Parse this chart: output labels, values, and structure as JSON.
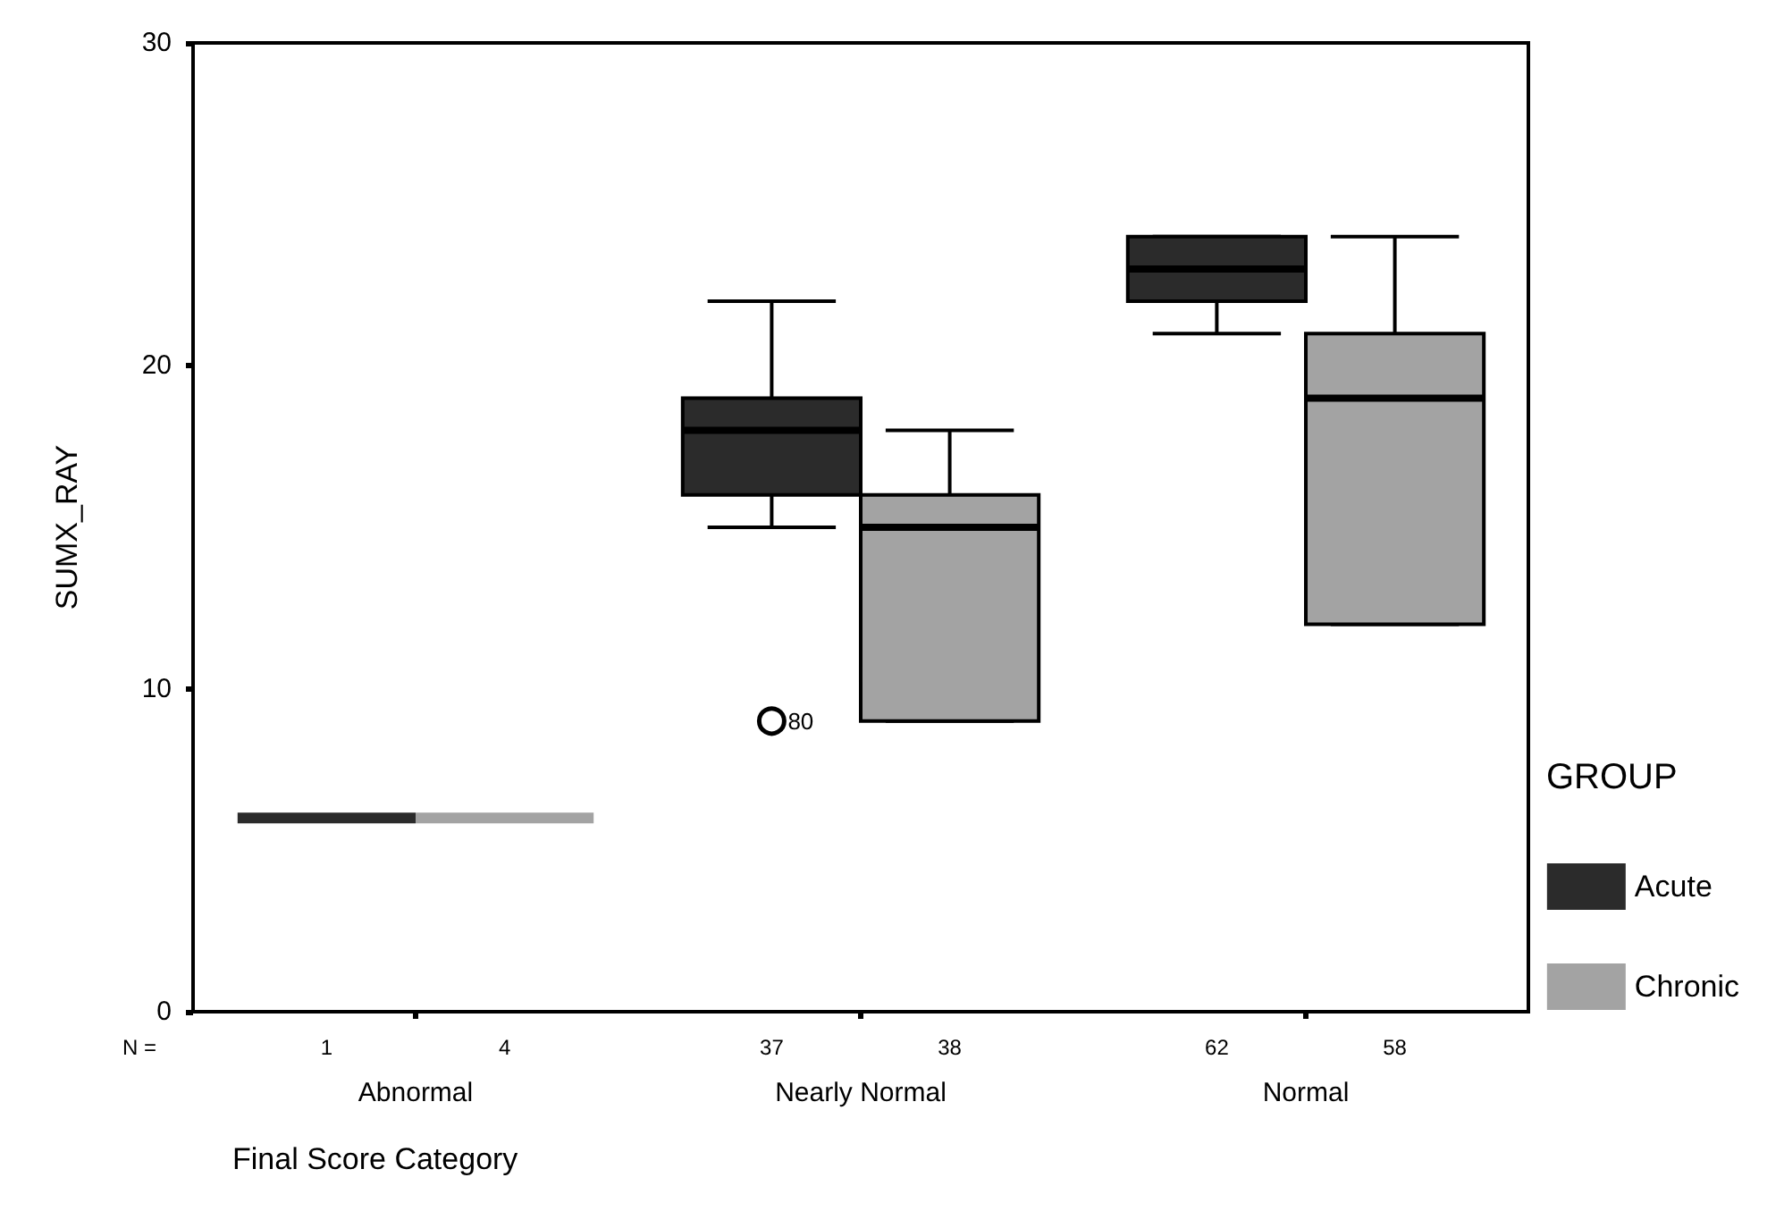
{
  "chart_data": {
    "type": "box",
    "xlabel": "Final Score Category",
    "ylabel": "SUMX_RAY",
    "legend_title": "GROUP",
    "categories": [
      "Abnormal",
      "Nearly Normal",
      "Normal"
    ],
    "series": [
      {
        "name": "Acute",
        "color": "#2b2b2b",
        "boxes": [
          {
            "low": 6,
            "q1": 6,
            "median": 6,
            "q3": 6,
            "high": 6
          },
          {
            "low": 15,
            "q1": 16,
            "median": 18,
            "q3": 19,
            "high": 22,
            "outliers": [
              9
            ]
          },
          {
            "low": 21,
            "q1": 22,
            "median": 23,
            "q3": 24,
            "high": 24
          }
        ]
      },
      {
        "name": "Chronic",
        "color": "#a3a3a3",
        "boxes": [
          {
            "low": 6,
            "q1": 6,
            "median": 6,
            "q3": 6,
            "high": 6
          },
          {
            "low": 9,
            "q1": 9,
            "median": 15,
            "q3": 16,
            "high": 18
          },
          {
            "low": 12,
            "q1": 12,
            "median": 19,
            "q3": 21,
            "high": 24
          }
        ]
      }
    ],
    "ylim": [
      0,
      30
    ],
    "yticks": [
      0,
      10,
      20,
      30
    ],
    "grid": false,
    "legend": "right",
    "annotations": [
      "N =",
      "1",
      "4",
      "37",
      "38",
      "62",
      "58",
      {
        "text": "80",
        "x": "Nearly Normal",
        "y": 9
      }
    ]
  }
}
